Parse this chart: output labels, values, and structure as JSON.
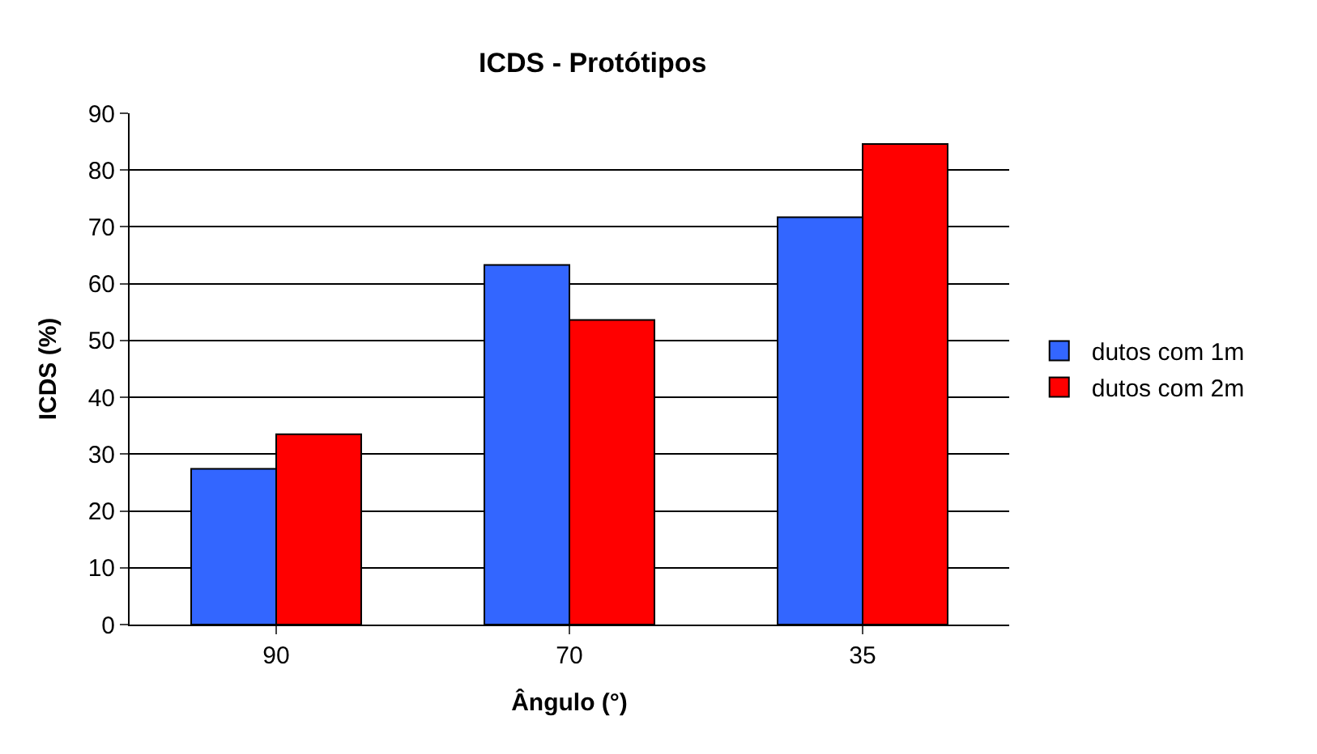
{
  "chart_data": {
    "type": "bar",
    "title": "ICDS - Protótipos",
    "xlabel": "Ângulo (°)",
    "ylabel": "ICDS (%)",
    "categories": [
      "90",
      "70",
      "35"
    ],
    "series": [
      {
        "name": "dutos com 1m",
        "color": "#3366ff",
        "values": [
          27.4,
          63.3,
          71.7
        ]
      },
      {
        "name": "dutos com 2m",
        "color": "#ff0000",
        "values": [
          33.5,
          53.6,
          84.6
        ]
      }
    ],
    "ylim": [
      0,
      90
    ],
    "yticks": [
      0,
      10,
      20,
      30,
      40,
      50,
      60,
      70,
      80,
      90
    ],
    "grid": "y",
    "legend": "right"
  }
}
